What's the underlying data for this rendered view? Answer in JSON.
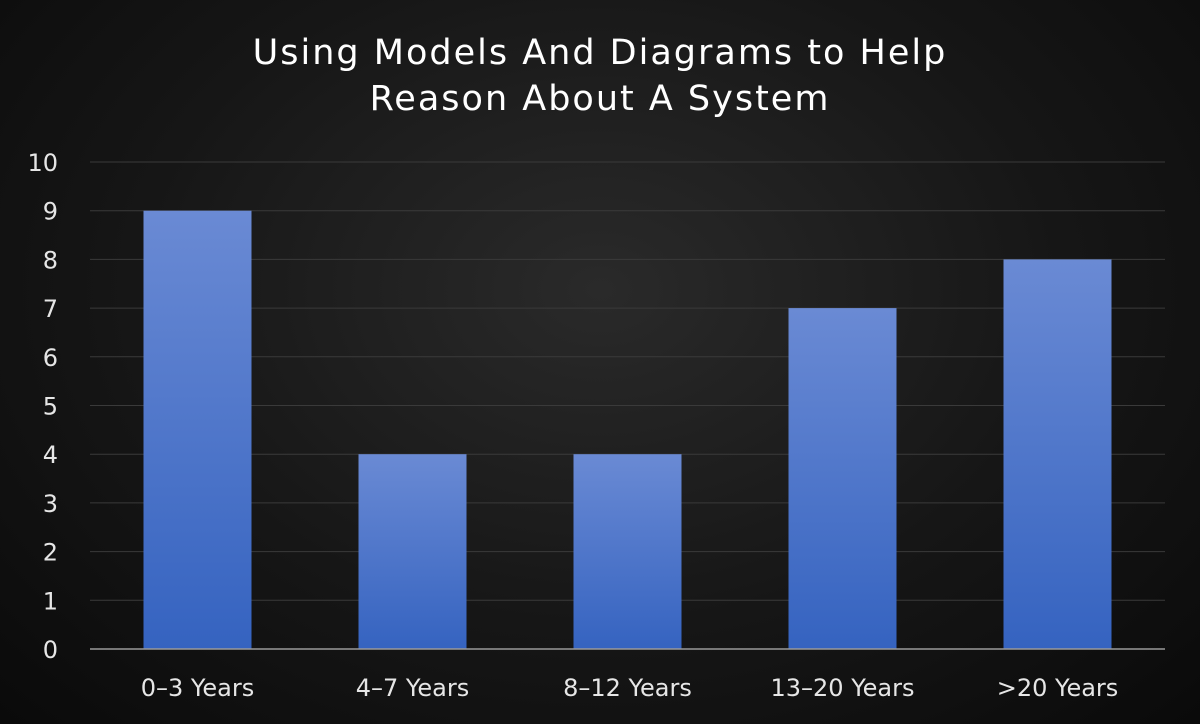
{
  "chart_data": {
    "type": "bar",
    "title_lines": [
      "Using Models And Diagrams to Help",
      "Reason About A System"
    ],
    "categories": [
      "0–3 Years",
      "4–7 Years",
      "8–12 Years",
      "13–20 Years",
      ">20 Years"
    ],
    "values": [
      9,
      4,
      4,
      7,
      8
    ],
    "yticks": [
      "0",
      "1",
      "2",
      "3",
      "4",
      "5",
      "6",
      "7",
      "8",
      "9",
      "10"
    ],
    "ylim": [
      0,
      10
    ],
    "grid": true,
    "colors": {
      "bar_top": "#6a8ad4",
      "bar_bottom": "#3563c0",
      "grid": "#3a3a3a",
      "axis": "#9a9a9a"
    }
  }
}
